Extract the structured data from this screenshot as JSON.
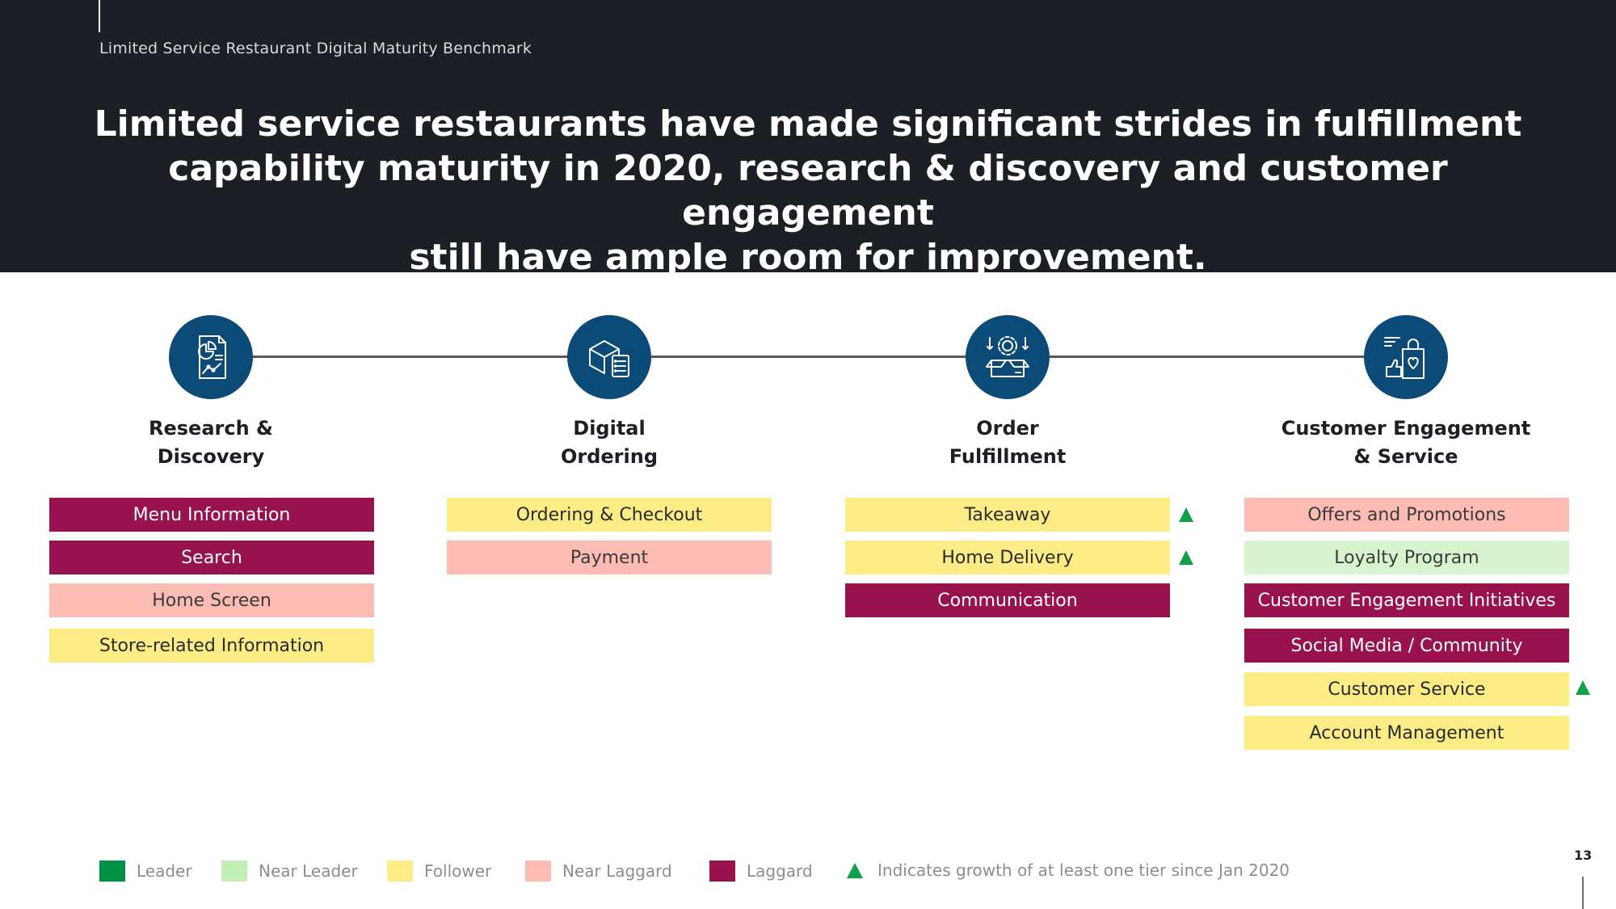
{
  "header": {
    "subtitle": "Limited Service Restaurant Digital Maturity Benchmark",
    "headline_lines": [
      "Limited service restaurants have made significant strides in fulfillment",
      "capability maturity in 2020, research & discovery and customer engagement",
      "still have ample room for improvement."
    ]
  },
  "colors": {
    "leader": "#009242",
    "near_leader": "#c2edb4",
    "follower": "#fbec85",
    "near_laggard": "#fcbcb3",
    "laggard": "#98124e",
    "growth_arrow": "#0fa24a",
    "circle": "#0c4a78"
  },
  "columns": [
    {
      "icon": "report-chart-icon",
      "title_lines": [
        "Research &",
        "Discovery"
      ],
      "items": [
        {
          "label": "Menu Information",
          "tier": "laggard",
          "growth": false
        },
        {
          "label": "Search",
          "tier": "laggard",
          "growth": false
        },
        {
          "label": "Home Screen",
          "tier": "near_laggard",
          "growth": false
        },
        {
          "label": "Store-related Information",
          "tier": "follower",
          "growth": false
        }
      ]
    },
    {
      "icon": "box-checklist-icon",
      "title_lines": [
        "Digital",
        "Ordering"
      ],
      "items": [
        {
          "label": "Ordering & Checkout",
          "tier": "follower",
          "growth": false
        },
        {
          "label": "Payment",
          "tier": "near_laggard",
          "growth": false
        }
      ]
    },
    {
      "icon": "box-gear-icon",
      "title_lines": [
        "Order",
        "Fulfillment"
      ],
      "items": [
        {
          "label": "Takeaway",
          "tier": "follower",
          "growth": true
        },
        {
          "label": "Home Delivery",
          "tier": "follower",
          "growth": true
        },
        {
          "label": "Communication",
          "tier": "laggard",
          "growth": false
        }
      ]
    },
    {
      "icon": "shopping-bag-heart-icon",
      "title_lines": [
        "Customer Engagement",
        "& Service"
      ],
      "items": [
        {
          "label": "Offers and Promotions",
          "tier": "near_laggard",
          "growth": false
        },
        {
          "label": "Loyalty Program",
          "tier": "near_leader",
          "growth": false
        },
        {
          "label": "Customer Engagement Initiatives",
          "tier": "laggard",
          "growth": false
        },
        {
          "label": "Social Media / Community",
          "tier": "laggard",
          "growth": false
        },
        {
          "label": "Customer Service",
          "tier": "follower",
          "growth": true
        },
        {
          "label": "Account Management",
          "tier": "follower",
          "growth": false
        }
      ]
    }
  ],
  "legend": {
    "leader": "Leader",
    "near_leader": "Near Leader",
    "follower": "Follower",
    "near_laggard": "Near Laggard",
    "laggard": "Laggard",
    "growth_note": "Indicates growth of at least one tier since Jan 2020"
  },
  "page_number": "13"
}
